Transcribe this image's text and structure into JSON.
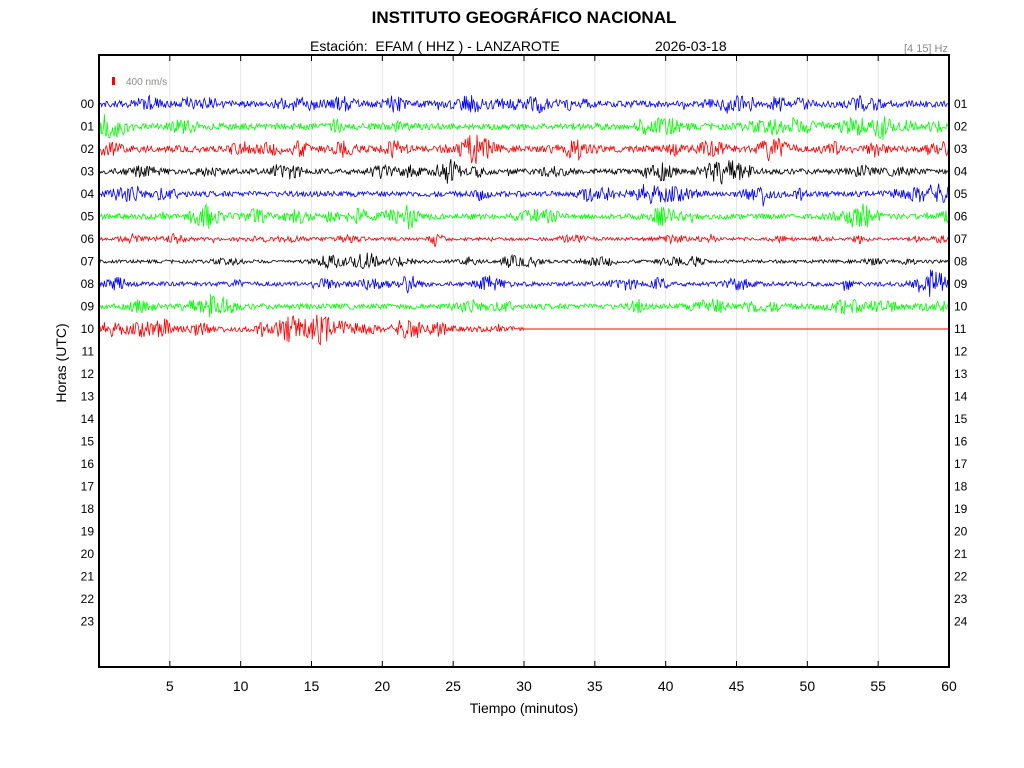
{
  "header": {
    "title": "INSTITUTO GEOGRÁFICO NACIONAL",
    "station": "Estación:  EFAM ( HHZ ) - LANZAROTE",
    "date": "2026-03-18",
    "filter": "[4 15] Hz"
  },
  "chart_data": {
    "type": "line",
    "title": "INSTITUTO GEOGRÁFICO NACIONAL",
    "xlabel": "Tiempo (minutos)",
    "ylabel": "Horas (UTC)",
    "xlim": [
      0,
      60
    ],
    "x_ticks": [
      5,
      10,
      15,
      20,
      25,
      30,
      35,
      40,
      45,
      50,
      55,
      60
    ],
    "left_hour_labels": [
      "00",
      "01",
      "02",
      "03",
      "04",
      "05",
      "06",
      "07",
      "08",
      "09",
      "10",
      "11",
      "12",
      "13",
      "14",
      "15",
      "16",
      "17",
      "18",
      "19",
      "20",
      "21",
      "22",
      "23"
    ],
    "right_hour_labels": [
      "01",
      "02",
      "03",
      "04",
      "05",
      "06",
      "07",
      "08",
      "09",
      "10",
      "11",
      "12",
      "13",
      "14",
      "15",
      "16",
      "17",
      "18",
      "19",
      "20",
      "21",
      "22",
      "23",
      "24"
    ],
    "scale_bar": {
      "label": "400 nm/s",
      "color": "#ff0000"
    },
    "grid": true,
    "color_cycle": [
      "#0000ff",
      "#00ff00",
      "#ff0000",
      "#000000"
    ],
    "traces": [
      {
        "hour": "00",
        "end_minute": 60,
        "amplitude": 6
      },
      {
        "hour": "01",
        "end_minute": 60,
        "amplitude": 6
      },
      {
        "hour": "02",
        "end_minute": 60,
        "amplitude": 6
      },
      {
        "hour": "03",
        "end_minute": 60,
        "amplitude": 5
      },
      {
        "hour": "04",
        "end_minute": 60,
        "amplitude": 5
      },
      {
        "hour": "05",
        "end_minute": 60,
        "amplitude": 5
      },
      {
        "hour": "06",
        "end_minute": 60,
        "amplitude": 3
      },
      {
        "hour": "07",
        "end_minute": 60,
        "amplitude": 3
      },
      {
        "hour": "08",
        "end_minute": 60,
        "amplitude": 4
      },
      {
        "hour": "09",
        "end_minute": 60,
        "amplitude": 5
      },
      {
        "hour": "10",
        "end_minute": 30,
        "amplitude": 5
      }
    ]
  }
}
